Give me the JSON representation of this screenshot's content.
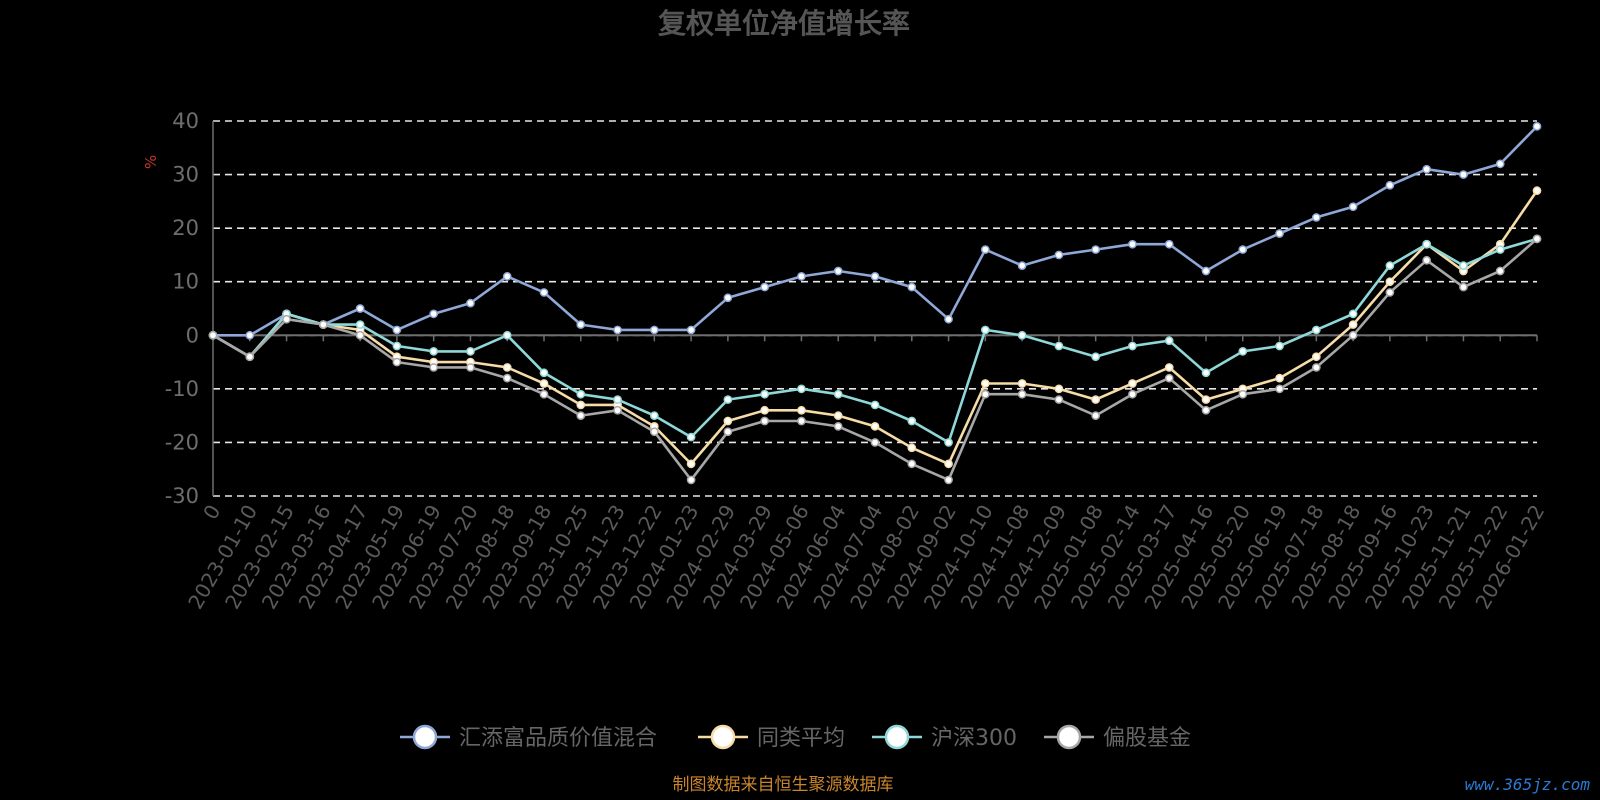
{
  "watermark": "www.365jz.com",
  "source": "制图数据来自恒生聚源数据库",
  "chart_data": {
    "type": "line",
    "title": "复权单位净值增长率",
    "ylabel": "%",
    "xlabel": "",
    "ylim": [
      -30,
      40
    ],
    "yticks": [
      40,
      30,
      20,
      10,
      0,
      -10,
      -20,
      -30
    ],
    "grid": true,
    "legend_position": "bottom",
    "categories": [
      "0",
      "2023-01-10",
      "2023-02-15",
      "2023-03-16",
      "2023-04-17",
      "2023-05-19",
      "2023-06-19",
      "2023-07-20",
      "2023-08-18",
      "2023-09-18",
      "2023-10-25",
      "2023-11-23",
      "2023-12-22",
      "2024-01-23",
      "2024-02-29",
      "2024-03-29",
      "2024-05-06",
      "2024-06-04",
      "2024-07-04",
      "2024-08-02",
      "2024-09-02",
      "2024-10-10",
      "2024-11-08",
      "2024-12-09",
      "2025-01-08",
      "2025-02-14",
      "2025-03-17",
      "2025-04-16",
      "2025-05-20",
      "2025-06-19",
      "2025-07-18",
      "2025-08-18",
      "2025-09-16",
      "2025-10-23",
      "2025-11-21",
      "2025-12-22",
      "2026-01-22"
    ],
    "series": [
      {
        "name": "汇添富品质价值混合",
        "color": "#8fa8d8",
        "values": [
          0,
          0,
          4,
          2,
          5,
          1,
          4,
          6,
          11,
          8,
          2,
          1,
          1,
          1,
          7,
          9,
          11,
          12,
          11,
          9,
          3,
          16,
          13,
          15,
          16,
          17,
          17,
          12,
          16,
          19,
          22,
          24,
          28,
          31,
          30,
          32,
          39
        ]
      },
      {
        "name": "同类平均",
        "color": "#f7dca8",
        "values": [
          0,
          -4,
          4,
          2,
          1,
          -4,
          -5,
          -5,
          -6,
          -9,
          -13,
          -13,
          -17,
          -24,
          -16,
          -14,
          -14,
          -15,
          -17,
          -21,
          -24,
          -9,
          -9,
          -10,
          -12,
          -9,
          -6,
          -12,
          -10,
          -8,
          -4,
          2,
          10,
          17,
          12,
          17,
          27
        ]
      },
      {
        "name": "沪深300",
        "color": "#8fd8d8",
        "values": [
          0,
          -4,
          4,
          2,
          2,
          -2,
          -3,
          -3,
          0,
          -7,
          -11,
          -12,
          -15,
          -19,
          -12,
          -11,
          -10,
          -11,
          -13,
          -16,
          -20,
          1,
          0,
          -2,
          -4,
          -2,
          -1,
          -7,
          -3,
          -2,
          1,
          4,
          13,
          17,
          13,
          16,
          18
        ]
      },
      {
        "name": "偏股基金",
        "color": "#a7a7a7",
        "values": [
          0,
          -4,
          3,
          2,
          0,
          -5,
          -6,
          -6,
          -8,
          -11,
          -15,
          -14,
          -18,
          -27,
          -18,
          -16,
          -16,
          -17,
          -20,
          -24,
          -27,
          -11,
          -11,
          -12,
          -15,
          -11,
          -8,
          -14,
          -11,
          -10,
          -6,
          0,
          8,
          14,
          9,
          12,
          18
        ]
      }
    ]
  }
}
